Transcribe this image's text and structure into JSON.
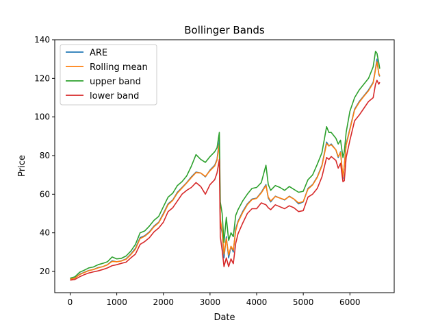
{
  "chart_data": {
    "type": "line",
    "title": "Bollinger Bands",
    "xlabel": "Date",
    "ylabel": "Price",
    "xlim": [
      -330,
      6950
    ],
    "ylim": [
      9,
      140
    ],
    "xticks": [
      0,
      1000,
      2000,
      3000,
      4000,
      5000,
      6000
    ],
    "yticks": [
      20,
      40,
      60,
      80,
      100,
      120,
      140
    ],
    "grid": false,
    "legend_position": "top-left",
    "x": [
      0,
      100,
      200,
      300,
      400,
      500,
      600,
      700,
      800,
      900,
      1000,
      1100,
      1200,
      1300,
      1400,
      1500,
      1600,
      1700,
      1800,
      1900,
      2000,
      2100,
      2200,
      2300,
      2400,
      2500,
      2600,
      2700,
      2800,
      2900,
      3000,
      3100,
      3150,
      3200,
      3220,
      3260,
      3300,
      3350,
      3400,
      3450,
      3500,
      3550,
      3600,
      3700,
      3800,
      3900,
      4000,
      4100,
      4200,
      4250,
      4300,
      4400,
      4500,
      4600,
      4700,
      4800,
      4900,
      5000,
      5100,
      5200,
      5300,
      5400,
      5500,
      5550,
      5600,
      5700,
      5750,
      5800,
      5850,
      5880,
      5920,
      6000,
      6100,
      6200,
      6300,
      6400,
      6500,
      6550,
      6580,
      6620,
      6640
    ],
    "series": [
      {
        "name": "ARE",
        "color": "#1f77b4",
        "values": [
          16,
          16.5,
          18.5,
          19.5,
          20.5,
          21,
          22,
          22.5,
          23.5,
          25.5,
          25,
          25.5,
          26.5,
          29,
          32,
          37.5,
          38.5,
          40.5,
          43.5,
          45.5,
          50,
          55,
          57,
          61,
          63.5,
          66,
          69,
          71.5,
          71,
          69,
          72.5,
          75,
          78,
          88,
          45,
          40,
          27,
          38,
          27,
          33,
          30,
          42,
          46,
          51,
          55,
          57.5,
          58,
          61,
          65,
          58,
          56,
          59,
          58,
          57,
          59,
          57.5,
          55,
          56,
          63,
          65,
          69,
          75,
          87,
          85,
          86,
          83,
          79,
          82,
          68,
          75,
          86,
          94,
          104,
          108,
          111,
          114,
          118,
          125,
          130,
          122,
          121
        ]
      },
      {
        "name": "Rolling mean",
        "color": "#ff7f0e",
        "values": [
          16,
          16.5,
          18.3,
          19.4,
          20.4,
          21,
          21.8,
          22.5,
          23.4,
          25.2,
          25,
          25.4,
          26.3,
          28.7,
          31.5,
          37,
          38.2,
          40.2,
          43.2,
          45.2,
          49.5,
          54.6,
          56.8,
          60.6,
          63.2,
          65.8,
          68.6,
          71.2,
          71,
          69.2,
          72.2,
          74.6,
          77.5,
          86,
          47,
          41,
          29,
          37,
          28.5,
          33,
          31,
          41,
          45.5,
          50.5,
          54.6,
          57.2,
          57.8,
          60.7,
          64.5,
          58.5,
          56.5,
          58.8,
          58,
          57.2,
          58.8,
          57.5,
          55.5,
          56.2,
          62.6,
          64.8,
          68.7,
          74.6,
          86.2,
          85,
          85.6,
          83,
          79.5,
          81.6,
          69,
          74.5,
          85.4,
          93.5,
          103.6,
          107.6,
          110.7,
          113.6,
          117.6,
          124.5,
          128.6,
          122.5,
          121.2
        ]
      },
      {
        "name": "upper band",
        "color": "#2ca02c",
        "values": [
          16.5,
          17.2,
          19.5,
          20.6,
          21.8,
          22.3,
          23.5,
          24.2,
          25,
          27.5,
          26.5,
          26.8,
          28,
          30.5,
          34,
          40,
          41,
          43.5,
          46.5,
          48.5,
          53.5,
          58.5,
          60.5,
          64.5,
          66.5,
          69.5,
          74.5,
          80.5,
          78,
          76.5,
          79.5,
          82,
          84,
          92,
          56,
          50,
          35,
          48,
          36,
          40,
          38,
          49,
          52,
          56.5,
          60,
          63,
          63.5,
          66,
          75,
          65,
          62,
          64.5,
          63.5,
          62,
          64,
          62.5,
          61,
          61.5,
          67.5,
          70,
          75.5,
          81.5,
          95,
          92,
          92,
          89,
          86,
          88,
          79,
          82,
          92,
          103,
          110,
          114,
          117,
          120,
          126,
          134,
          133,
          128,
          125
        ]
      },
      {
        "name": "lower band",
        "color": "#d62728",
        "values": [
          15.5,
          15.8,
          17.2,
          18.3,
          19.2,
          19.8,
          20.3,
          21,
          21.8,
          23,
          23.5,
          24.2,
          24.8,
          27,
          29,
          34,
          35.5,
          37.5,
          40.5,
          42.5,
          45.5,
          51,
          53,
          56.5,
          60,
          62,
          63.5,
          66,
          64,
          60,
          65,
          67.5,
          71,
          78,
          38,
          31,
          22.5,
          27,
          22.5,
          26.5,
          24,
          34.5,
          39.5,
          45,
          50,
          52.5,
          52.5,
          55.5,
          54.5,
          53,
          52,
          54.5,
          53.5,
          52.5,
          54,
          53,
          51,
          51.5,
          58.5,
          60,
          63,
          69,
          79,
          78,
          79.5,
          77.5,
          73.5,
          76,
          66.5,
          67,
          79,
          88,
          98,
          101,
          104.5,
          108,
          110,
          117,
          119,
          117,
          118
        ]
      }
    ]
  }
}
